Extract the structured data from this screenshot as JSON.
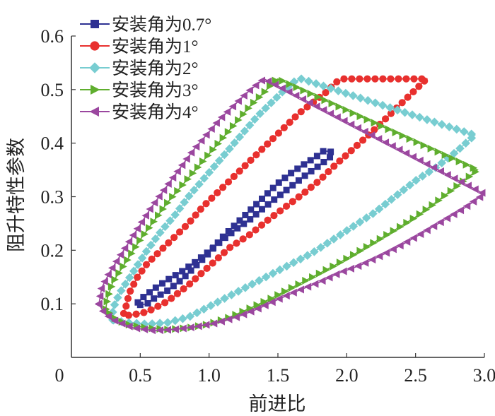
{
  "chart_data": {
    "type": "line",
    "title": "",
    "xlabel": "前进比",
    "ylabel": "阻升特性参数",
    "xlim": [
      0,
      3.0
    ],
    "ylim": [
      0,
      0.6
    ],
    "xticks": [
      "0",
      "0.5",
      "1.0",
      "1.5",
      "2.0",
      "2.5",
      "3.0"
    ],
    "yticks": [
      "0.1",
      "0.2",
      "0.3",
      "0.4",
      "0.5",
      "0.6"
    ],
    "grid": false,
    "legend_position": "top-left",
    "series": [
      {
        "name": "安装角为0.7°",
        "color": "#2e3192",
        "marker": "square",
        "points": [
          [
            0.5,
            0.098
          ],
          [
            0.55,
            0.1
          ],
          [
            0.6,
            0.11
          ],
          [
            0.7,
            0.125
          ],
          [
            0.8,
            0.145
          ],
          [
            0.9,
            0.17
          ],
          [
            1.0,
            0.195
          ],
          [
            1.1,
            0.225
          ],
          [
            1.2,
            0.25
          ],
          [
            1.3,
            0.275
          ],
          [
            1.4,
            0.3
          ],
          [
            1.5,
            0.325
          ],
          [
            1.6,
            0.345
          ],
          [
            1.7,
            0.362
          ],
          [
            1.78,
            0.375
          ],
          [
            1.83,
            0.385
          ],
          [
            1.88,
            0.385
          ],
          [
            1.9,
            0.378
          ],
          [
            1.87,
            0.372
          ],
          [
            1.8,
            0.358
          ],
          [
            1.7,
            0.34
          ],
          [
            1.6,
            0.32
          ],
          [
            1.5,
            0.3
          ],
          [
            1.4,
            0.28
          ],
          [
            1.3,
            0.258
          ],
          [
            1.2,
            0.24
          ],
          [
            1.1,
            0.22
          ],
          [
            1.0,
            0.198
          ],
          [
            0.9,
            0.178
          ],
          [
            0.8,
            0.16
          ],
          [
            0.7,
            0.145
          ],
          [
            0.6,
            0.128
          ],
          [
            0.52,
            0.112
          ],
          [
            0.48,
            0.102
          ],
          [
            0.5,
            0.098
          ]
        ]
      },
      {
        "name": "安装角为1°",
        "color": "#e8302e",
        "marker": "circle",
        "points": [
          [
            0.38,
            0.082
          ],
          [
            0.4,
            0.098
          ],
          [
            0.42,
            0.12
          ],
          [
            0.48,
            0.15
          ],
          [
            0.55,
            0.175
          ],
          [
            0.65,
            0.2
          ],
          [
            0.75,
            0.225
          ],
          [
            0.85,
            0.25
          ],
          [
            0.95,
            0.28
          ],
          [
            1.05,
            0.305
          ],
          [
            1.15,
            0.33
          ],
          [
            1.25,
            0.355
          ],
          [
            1.35,
            0.38
          ],
          [
            1.45,
            0.405
          ],
          [
            1.55,
            0.43
          ],
          [
            1.65,
            0.455
          ],
          [
            1.75,
            0.475
          ],
          [
            1.85,
            0.495
          ],
          [
            1.93,
            0.515
          ],
          [
            1.98,
            0.52
          ],
          [
            2.58,
            0.52
          ],
          [
            2.5,
            0.5
          ],
          [
            2.42,
            0.48
          ],
          [
            2.3,
            0.45
          ],
          [
            2.18,
            0.42
          ],
          [
            2.05,
            0.39
          ],
          [
            1.92,
            0.36
          ],
          [
            1.8,
            0.33
          ],
          [
            1.68,
            0.305
          ],
          [
            1.55,
            0.28
          ],
          [
            1.42,
            0.255
          ],
          [
            1.3,
            0.23
          ],
          [
            1.15,
            0.205
          ],
          [
            1.0,
            0.17
          ],
          [
            0.85,
            0.135
          ],
          [
            0.7,
            0.105
          ],
          [
            0.55,
            0.085
          ],
          [
            0.42,
            0.078
          ],
          [
            0.38,
            0.082
          ]
        ]
      },
      {
        "name": "安装角为2°",
        "color": "#78cdd1",
        "marker": "diamond",
        "points": [
          [
            0.3,
            0.07
          ],
          [
            0.3,
            0.09
          ],
          [
            0.35,
            0.12
          ],
          [
            0.45,
            0.16
          ],
          [
            0.55,
            0.2
          ],
          [
            0.65,
            0.235
          ],
          [
            0.75,
            0.265
          ],
          [
            0.85,
            0.3
          ],
          [
            0.95,
            0.33
          ],
          [
            1.05,
            0.36
          ],
          [
            1.15,
            0.39
          ],
          [
            1.25,
            0.42
          ],
          [
            1.35,
            0.45
          ],
          [
            1.45,
            0.475
          ],
          [
            1.55,
            0.5
          ],
          [
            1.62,
            0.515
          ],
          [
            1.67,
            0.52
          ],
          [
            2.93,
            0.415
          ],
          [
            2.8,
            0.385
          ],
          [
            2.65,
            0.355
          ],
          [
            2.5,
            0.33
          ],
          [
            2.35,
            0.3
          ],
          [
            2.2,
            0.27
          ],
          [
            2.05,
            0.245
          ],
          [
            1.9,
            0.22
          ],
          [
            1.75,
            0.195
          ],
          [
            1.6,
            0.175
          ],
          [
            1.45,
            0.155
          ],
          [
            1.3,
            0.135
          ],
          [
            1.15,
            0.115
          ],
          [
            1.0,
            0.095
          ],
          [
            0.85,
            0.075
          ],
          [
            0.7,
            0.065
          ],
          [
            0.55,
            0.062
          ],
          [
            0.4,
            0.065
          ],
          [
            0.3,
            0.07
          ]
        ]
      },
      {
        "name": "安装角为3°",
        "color": "#5fae2e",
        "marker": "triangle-right",
        "points": [
          [
            0.25,
            0.09
          ],
          [
            0.26,
            0.11
          ],
          [
            0.3,
            0.14
          ],
          [
            0.4,
            0.18
          ],
          [
            0.5,
            0.22
          ],
          [
            0.6,
            0.255
          ],
          [
            0.7,
            0.29
          ],
          [
            0.8,
            0.32
          ],
          [
            0.9,
            0.35
          ],
          [
            1.0,
            0.38
          ],
          [
            1.1,
            0.41
          ],
          [
            1.2,
            0.44
          ],
          [
            1.3,
            0.47
          ],
          [
            1.4,
            0.495
          ],
          [
            1.47,
            0.515
          ],
          [
            1.5,
            0.52
          ],
          [
            2.95,
            0.35
          ],
          [
            2.8,
            0.32
          ],
          [
            2.65,
            0.29
          ],
          [
            2.5,
            0.262
          ],
          [
            2.35,
            0.238
          ],
          [
            2.2,
            0.215
          ],
          [
            2.05,
            0.192
          ],
          [
            1.9,
            0.17
          ],
          [
            1.75,
            0.15
          ],
          [
            1.6,
            0.13
          ],
          [
            1.45,
            0.11
          ],
          [
            1.3,
            0.092
          ],
          [
            1.15,
            0.075
          ],
          [
            1.0,
            0.062
          ],
          [
            0.85,
            0.055
          ],
          [
            0.7,
            0.052
          ],
          [
            0.55,
            0.055
          ],
          [
            0.4,
            0.062
          ],
          [
            0.3,
            0.075
          ],
          [
            0.25,
            0.09
          ]
        ]
      },
      {
        "name": "安装角为4°",
        "color": "#9b479f",
        "marker": "triangle-left",
        "points": [
          [
            0.2,
            0.1
          ],
          [
            0.22,
            0.13
          ],
          [
            0.28,
            0.16
          ],
          [
            0.38,
            0.2
          ],
          [
            0.48,
            0.24
          ],
          [
            0.58,
            0.28
          ],
          [
            0.68,
            0.315
          ],
          [
            0.78,
            0.35
          ],
          [
            0.88,
            0.385
          ],
          [
            0.98,
            0.415
          ],
          [
            1.08,
            0.445
          ],
          [
            1.18,
            0.47
          ],
          [
            1.28,
            0.495
          ],
          [
            1.35,
            0.51
          ],
          [
            1.4,
            0.52
          ],
          [
            3.0,
            0.305
          ],
          [
            2.85,
            0.278
          ],
          [
            2.7,
            0.255
          ],
          [
            2.55,
            0.232
          ],
          [
            2.4,
            0.21
          ],
          [
            2.25,
            0.19
          ],
          [
            2.1,
            0.172
          ],
          [
            1.95,
            0.158
          ],
          [
            1.8,
            0.14
          ],
          [
            1.65,
            0.125
          ],
          [
            1.5,
            0.108
          ],
          [
            1.35,
            0.09
          ],
          [
            1.2,
            0.075
          ],
          [
            1.05,
            0.064
          ],
          [
            0.9,
            0.057
          ],
          [
            0.75,
            0.052
          ],
          [
            0.6,
            0.05
          ],
          [
            0.45,
            0.055
          ],
          [
            0.32,
            0.068
          ],
          [
            0.24,
            0.082
          ],
          [
            0.2,
            0.1
          ]
        ]
      }
    ]
  }
}
